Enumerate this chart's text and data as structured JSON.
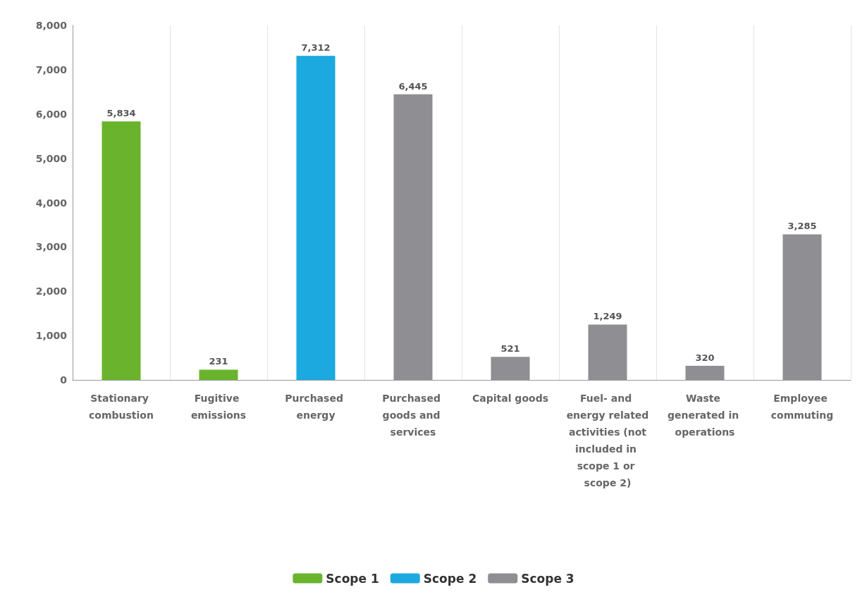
{
  "chart_data": {
    "type": "bar",
    "stacked": true,
    "categories": [
      "Stationary combustion",
      "Fugitive emissions",
      "Purchased energy",
      "Purchased goods and services",
      "Capital goods",
      "Fuel- and energy related activities (not included in scope 1 or scope 2)",
      "Waste generated in operations",
      "Employee commuting"
    ],
    "series": [
      {
        "name": "Scope 1",
        "color": "#6ab42d",
        "values": [
          5834,
          231,
          null,
          null,
          null,
          null,
          null,
          null
        ],
        "value_labels": [
          "5,834",
          "231",
          null,
          null,
          null,
          null,
          null,
          null
        ]
      },
      {
        "name": "Scope 2",
        "color": "#1ba9e0",
        "values": [
          null,
          null,
          7312,
          null,
          null,
          null,
          null,
          null
        ],
        "value_labels": [
          null,
          null,
          "7,312",
          null,
          null,
          null,
          null,
          null
        ]
      },
      {
        "name": "Scope 3",
        "color": "#8e8e93",
        "values": [
          null,
          null,
          null,
          6445,
          521,
          1249,
          320,
          3285
        ],
        "value_labels": [
          null,
          null,
          null,
          "6,445",
          "521",
          "1,249",
          "320",
          "3,285"
        ]
      }
    ],
    "ylim": [
      0,
      8000
    ],
    "yticks": [
      0,
      {
        "value": 1000,
        "label": "1,000"
      },
      {
        "value": 2000,
        "label": "2,000"
      },
      {
        "value": 3000,
        "label": "3,000"
      },
      {
        "value": 4000,
        "label": "4,000"
      },
      {
        "value": 5000,
        "label": "5,000"
      },
      {
        "value": 6000,
        "label": "6,000"
      },
      {
        "value": 7000,
        "label": "7,000"
      },
      {
        "value": 8000,
        "label": "8,000"
      }
    ],
    "grid": "x",
    "legend": "bottom"
  }
}
